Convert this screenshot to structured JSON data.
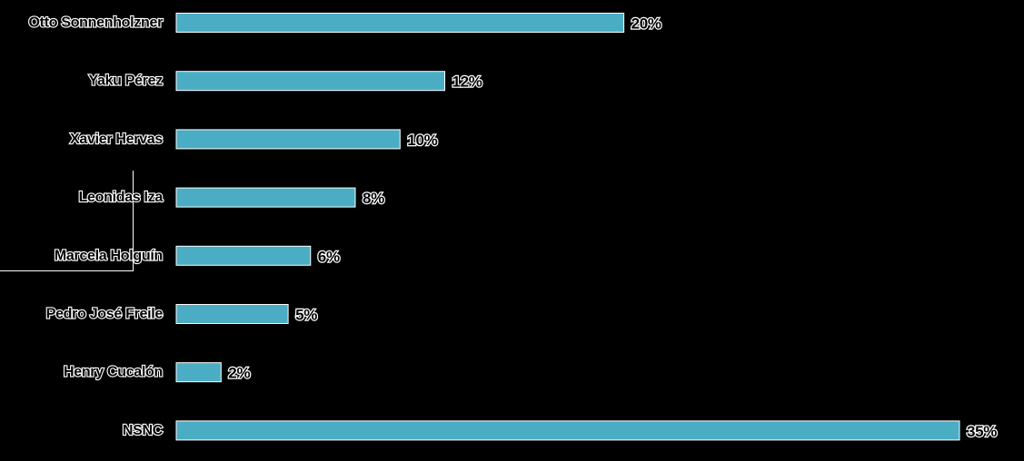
{
  "chart_data": {
    "type": "bar",
    "orientation": "horizontal",
    "title": "",
    "xlabel": "",
    "ylabel": "",
    "categories": [
      "Otto Sonnenholzner",
      "Yaku Pérez",
      "Xavier Hervas",
      "Leonidas Iza",
      "Marcela Holguín",
      "Pedro José Freile",
      "Henry Cucalón",
      "NSNC"
    ],
    "values": [
      20,
      12,
      10,
      8,
      6,
      5,
      2,
      35
    ],
    "value_labels": [
      "20%",
      "12%",
      "10%",
      "8%",
      "6%",
      "5%",
      "2%",
      "35%"
    ],
    "xlim": [
      0,
      35
    ],
    "grid": false,
    "legend": "none",
    "bar_color": "#4badc4"
  }
}
